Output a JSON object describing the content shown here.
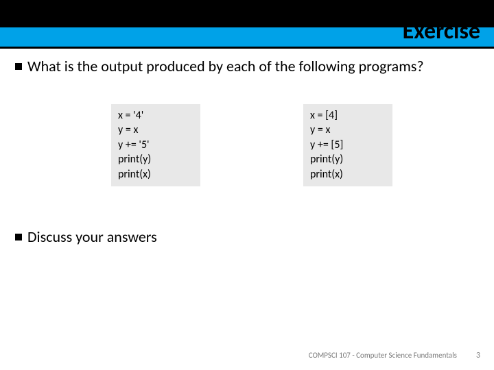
{
  "header": {
    "title": "Exercise",
    "bar_color": "#00a2e8",
    "strip_color": "#000000",
    "underline_color": "#000000"
  },
  "bullets": [
    {
      "text": "What is the output produced by each of the following programs?"
    },
    {
      "text": "Discuss your answers"
    }
  ],
  "code_boxes": [
    {
      "lines": [
        "x = '4'",
        "y = x",
        "y += '5'",
        "print(y)",
        "print(x)"
      ],
      "bg": "#e8e8e8"
    },
    {
      "lines": [
        "x = [4]",
        "y = x",
        "y += [5]",
        "print(y)",
        "print(x)"
      ],
      "bg": "#e8e8e8"
    }
  ],
  "footer": {
    "course": "COMPSCI 107 - Computer Science Fundamentals",
    "page": "3"
  }
}
